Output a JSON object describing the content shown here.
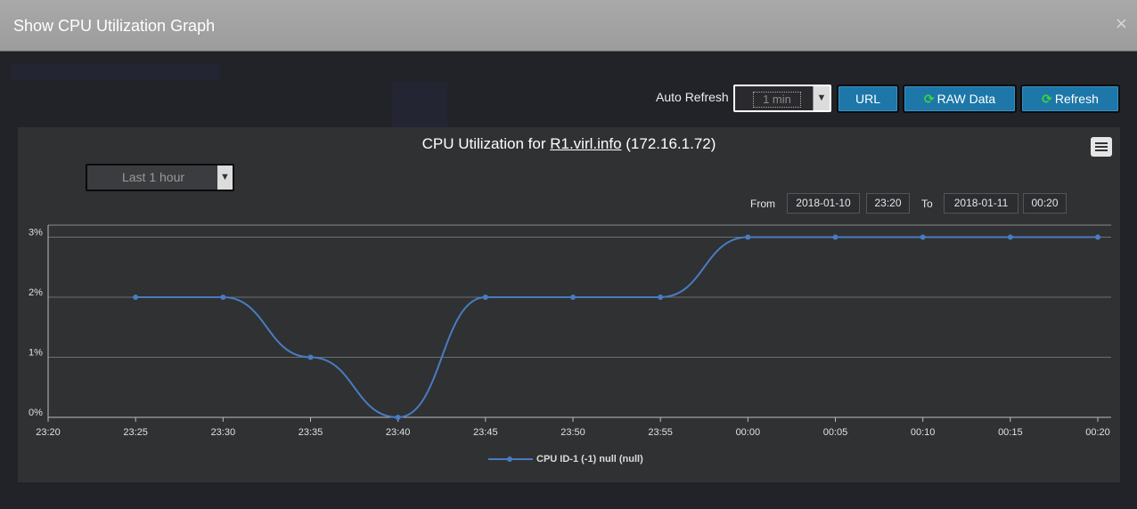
{
  "modal": {
    "title": "Show CPU Utilization Graph",
    "close_symbol": "×"
  },
  "toolbar": {
    "auto_refresh_label": "Auto Refresh",
    "auto_refresh_value": "1 min",
    "url_button": "URL",
    "raw_button": "RAW Data",
    "refresh_button": "Refresh",
    "refresh_icon": "refresh-icon"
  },
  "chart_panel": {
    "title_prefix": "CPU Utilization for ",
    "title_link": "R1.virl.info",
    "title_suffix": " (172.16.1.72)",
    "range_value": "Last 1 hour",
    "from_label": "From",
    "from_date": "2018-01-10",
    "from_time": "23:20",
    "to_label": "To",
    "to_date": "2018-01-11",
    "to_time": "00:20",
    "menu_icon": "hamburger-menu-icon"
  },
  "colors": {
    "series": "#4a7bc0",
    "button": "#1d77a8",
    "refresh_icon": "#3fd63a"
  },
  "chart_data": {
    "type": "line",
    "x": [
      "23:25",
      "23:30",
      "23:35",
      "23:40",
      "23:45",
      "23:50",
      "23:55",
      "00:00",
      "00:05",
      "00:10",
      "00:15",
      "00:20"
    ],
    "x_ticks": [
      "23:20",
      "23:25",
      "23:30",
      "23:35",
      "23:40",
      "23:45",
      "23:50",
      "23:55",
      "00:00",
      "00:05",
      "00:10",
      "00:15",
      "00:20"
    ],
    "y_ticks": [
      "0%",
      "1%",
      "2%",
      "3%"
    ],
    "ylim": [
      0,
      4
    ],
    "series": [
      {
        "name": "CPU ID-1 (-1) null (null)",
        "values": [
          2,
          2,
          1,
          0,
          2,
          2,
          2,
          3,
          3,
          3,
          3,
          3
        ]
      }
    ],
    "grid": true,
    "legend": "bottom-center"
  }
}
